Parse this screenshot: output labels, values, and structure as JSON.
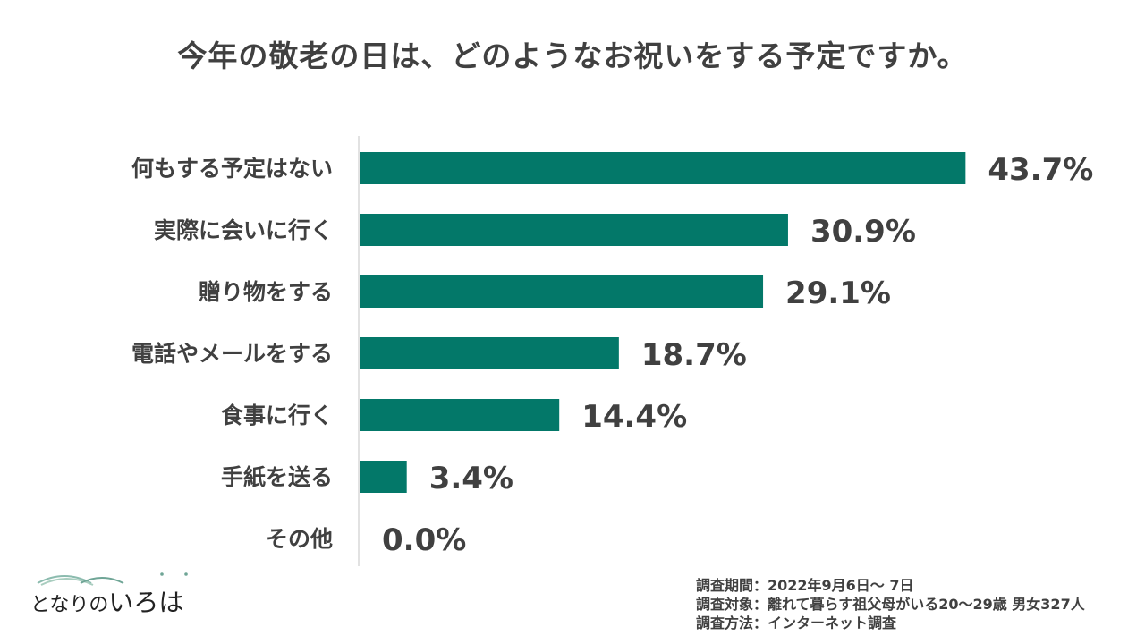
{
  "chart_data": {
    "type": "bar",
    "orientation": "horizontal",
    "title": "今年の敬老の日は、どのようなお祝いをする予定ですか。",
    "categories": [
      "何もする予定はない",
      "実際に会いに行く",
      "贈り物をする",
      "電話やメールをする",
      "食事に行く",
      "手紙を送る",
      "その他"
    ],
    "values": [
      43.7,
      30.9,
      29.1,
      18.7,
      14.4,
      3.4,
      0.0
    ],
    "value_labels": [
      "43.7%",
      "30.9%",
      "29.1%",
      "18.7%",
      "14.4%",
      "3.4%",
      "0.0%"
    ],
    "xlim": [
      0,
      50
    ],
    "grid": false,
    "bar_color": "#037869"
  },
  "logo": {
    "text_small": "となりの",
    "text_big": "いろは"
  },
  "survey": {
    "period": "調査期間：2022年9月6日～ 7日",
    "target": "調査対象：離れて暮らす祖父母がいる20～29歳 男女327人",
    "method": "調査方法：インターネット調査"
  }
}
